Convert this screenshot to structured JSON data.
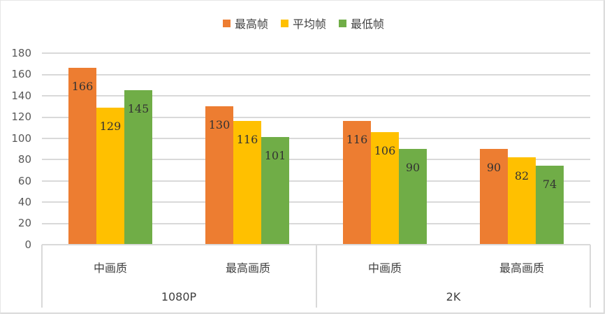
{
  "chart_data": {
    "type": "bar",
    "title": "",
    "xlabel": "",
    "ylabel": "",
    "ylim": [
      0,
      180
    ],
    "yticks": [
      0,
      20,
      40,
      60,
      80,
      100,
      120,
      140,
      160,
      180
    ],
    "grid": true,
    "legend_position": "top",
    "group_labels": [
      "1080P",
      "2K"
    ],
    "categories": [
      "中画质",
      "最高画质",
      "中画质",
      "最高画质"
    ],
    "category_groups": [
      "1080P",
      "1080P",
      "2K",
      "2K"
    ],
    "series": [
      {
        "name": "最高帧",
        "color": "#ed7d31",
        "values": [
          166,
          130,
          116,
          90
        ]
      },
      {
        "name": "平均帧",
        "color": "#ffc000",
        "values": [
          129,
          116,
          106,
          82
        ]
      },
      {
        "name": "最低帧",
        "color": "#70ad47",
        "values": [
          145,
          101,
          90,
          74
        ]
      }
    ]
  },
  "legend": [
    {
      "label": "最高帧",
      "color": "#ed7d31"
    },
    {
      "label": "平均帧",
      "color": "#ffc000"
    },
    {
      "label": "最低帧",
      "color": "#70ad47"
    }
  ],
  "axis": {
    "y_labels": [
      "180",
      "160",
      "140",
      "120",
      "100",
      "80",
      "60",
      "40",
      "20",
      "0"
    ],
    "categories": [
      "中画质",
      "最高画质",
      "中画质",
      "最高画质"
    ],
    "groups": [
      "1080P",
      "2K"
    ]
  }
}
